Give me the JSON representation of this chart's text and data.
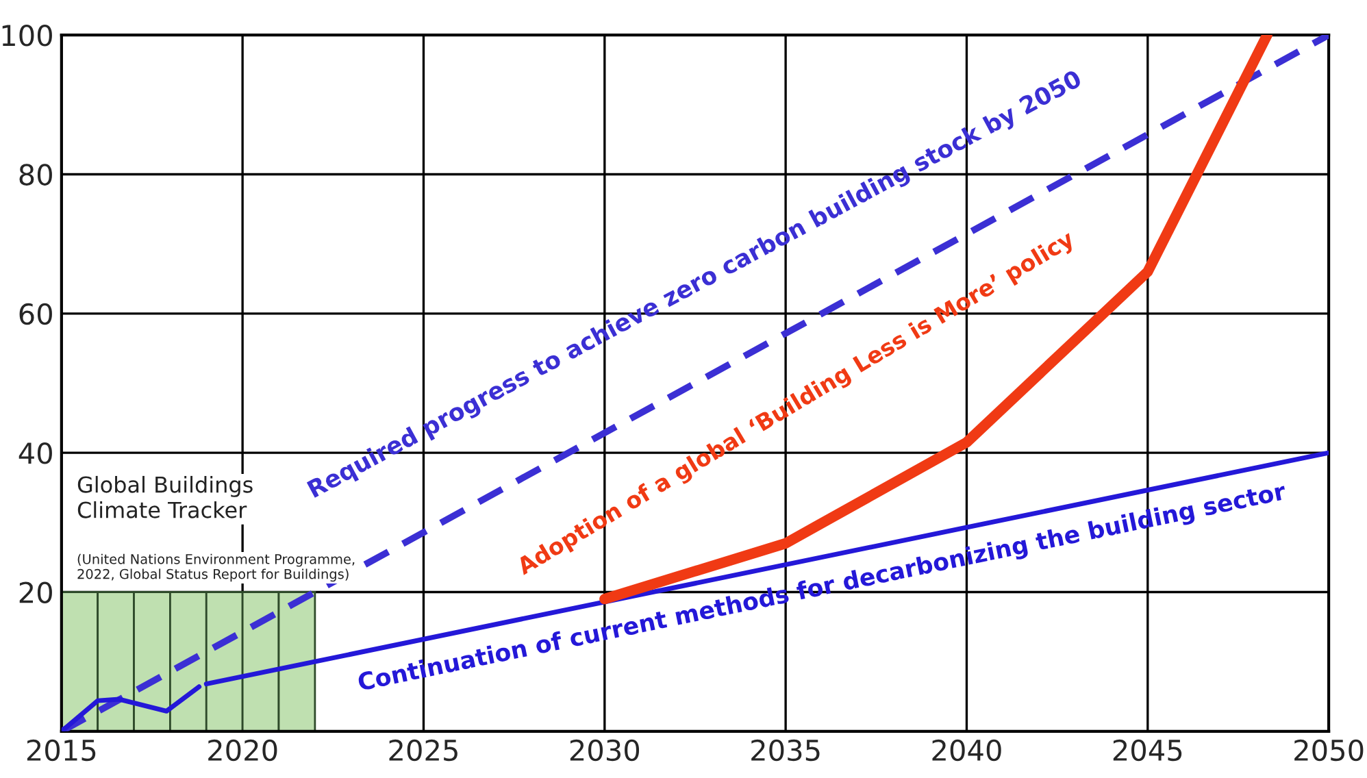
{
  "chart_data": {
    "type": "line",
    "xlim": [
      2015,
      2050
    ],
    "xticks": [
      2015,
      2020,
      2025,
      2030,
      2035,
      2040,
      2045,
      2050
    ],
    "ylim": [
      0,
      100
    ],
    "yticks": [
      {
        "value": 0,
        "label": null
      },
      20,
      40,
      60,
      80,
      100
    ],
    "grid": true,
    "legend": false,
    "series": [
      {
        "type": "bar",
        "color": "#bfe0b0",
        "x": [
          2015.5,
          2016.5,
          2017.5,
          2018.5,
          2019.5,
          2020.5,
          2021.5
        ],
        "values": [
          20,
          20,
          20,
          20,
          20,
          20,
          20
        ]
      },
      {
        "line_style": "dashed",
        "color": "#3b2fd4",
        "x": [
          2015,
          2050
        ],
        "values": [
          0,
          100
        ]
      },
      {
        "line_style": "solid",
        "color": "#2418d8",
        "x": [
          2015,
          2016,
          2016.6,
          2017.9,
          2018.8,
          2018.9,
          2019,
          2050
        ],
        "values": [
          0,
          4.4,
          4.6,
          2.9,
          6.4,
          null,
          6.8,
          40
        ]
      },
      {
        "line_style": "solid",
        "color": "#f03a14",
        "x": [
          2030,
          2035,
          2040,
          2045,
          2048.3
        ],
        "values": [
          19,
          27,
          41.5,
          66,
          100
        ]
      }
    ],
    "annotations": [
      "Required progress to achieve zero carbon building stock by 2050",
      "Adoption of a global ‘Building Less is More’ policy",
      "Continuation of current methods for decarbonizing the building sector",
      "Global Buildings\nClimate Tracker",
      "(United Nations Environment Programme,\n2022, Global Status Report for Buildings)"
    ]
  }
}
